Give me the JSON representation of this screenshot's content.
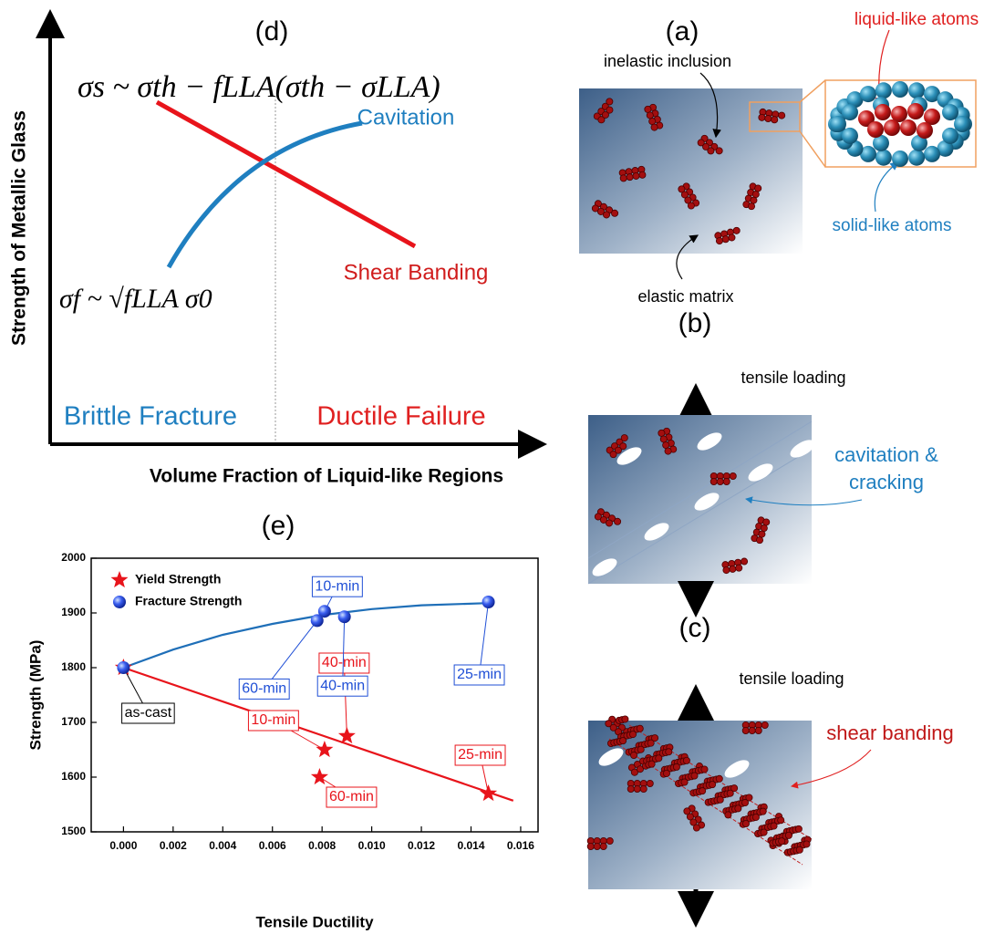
{
  "panel_d": {
    "title": "(d)",
    "y_label": "Strength of Metallic Glass",
    "x_label": "Volume Fraction of Liquid-like Regions",
    "formula_shear": "σs ~ σth − fLLA(σth − σLLA)",
    "formula_fracture": "σf ~ √fLLA σ0",
    "cavitation": "Cavitation",
    "shear_banding": "Shear Banding",
    "brittle": "Brittle Fracture",
    "ductile": "Ductile Failure"
  },
  "panel_a": {
    "title": "(a)",
    "liquid_like": "liquid-like atoms",
    "inelastic": "inelastic inclusion",
    "solid_like": "solid-like atoms",
    "matrix": "elastic matrix"
  },
  "panel_b": {
    "title": "(b)",
    "loading": "tensile loading",
    "cavitation_1": "cavitation &",
    "cavitation_2": "cracking"
  },
  "panel_c": {
    "title": "(c)",
    "loading": "tensile loading",
    "shear": "shear banding"
  },
  "chart_data": {
    "type": "scatter",
    "title": "(e)",
    "x_label": "Tensile Ductility",
    "y_label": "Strength (MPa)",
    "xlim": [
      -0.0013,
      0.0167
    ],
    "ylim": [
      1500,
      2000
    ],
    "xticks": [
      {
        "value": 0,
        "label": "0.000"
      },
      {
        "value": 0.002,
        "label": "0.002"
      },
      {
        "value": 0.004,
        "label": "0.004"
      },
      {
        "value": 0.006,
        "label": "0.006"
      },
      {
        "value": 0.008,
        "label": "0.008"
      },
      {
        "value": 0.01,
        "label": "0.010"
      },
      {
        "value": 0.012,
        "label": "0.012"
      },
      {
        "value": 0.014,
        "label": "0.014"
      },
      {
        "value": 0.016,
        "label": "0.016"
      }
    ],
    "yticks": [
      1500,
      1600,
      1700,
      1800,
      1900,
      2000
    ],
    "legend": "upper left",
    "series": [
      {
        "name": "Yield Strength",
        "color": "#e8141b",
        "marker": "star",
        "x": [
          0,
          0.0081,
          0.009,
          0.0079,
          0.0147
        ],
        "values": [
          1800,
          1650,
          1675,
          1600,
          1570
        ],
        "labels": [
          "as-cast",
          "10-min",
          "40-min",
          "60-min",
          "25-min"
        ]
      },
      {
        "name": "Fracture Strength",
        "color": "#1f4fd6",
        "marker": "ball",
        "x": [
          0,
          0.0081,
          0.0089,
          0.0078,
          0.0147
        ],
        "values": [
          1800,
          1903,
          1893,
          1886,
          1920
        ],
        "labels": [
          null,
          "10-min",
          "40-min",
          "60-min",
          "25-min"
        ]
      }
    ],
    "fits": [
      {
        "color": "#e8141b",
        "x": [
          0,
          0.0157
        ],
        "y": [
          1800,
          1557
        ]
      },
      {
        "color": "#1f6fb8",
        "x": [
          0,
          0.002,
          0.004,
          0.006,
          0.008,
          0.01,
          0.012,
          0.0147
        ],
        "y": [
          1800,
          1833,
          1860,
          1880,
          1896,
          1907,
          1914,
          1918
        ]
      }
    ]
  }
}
